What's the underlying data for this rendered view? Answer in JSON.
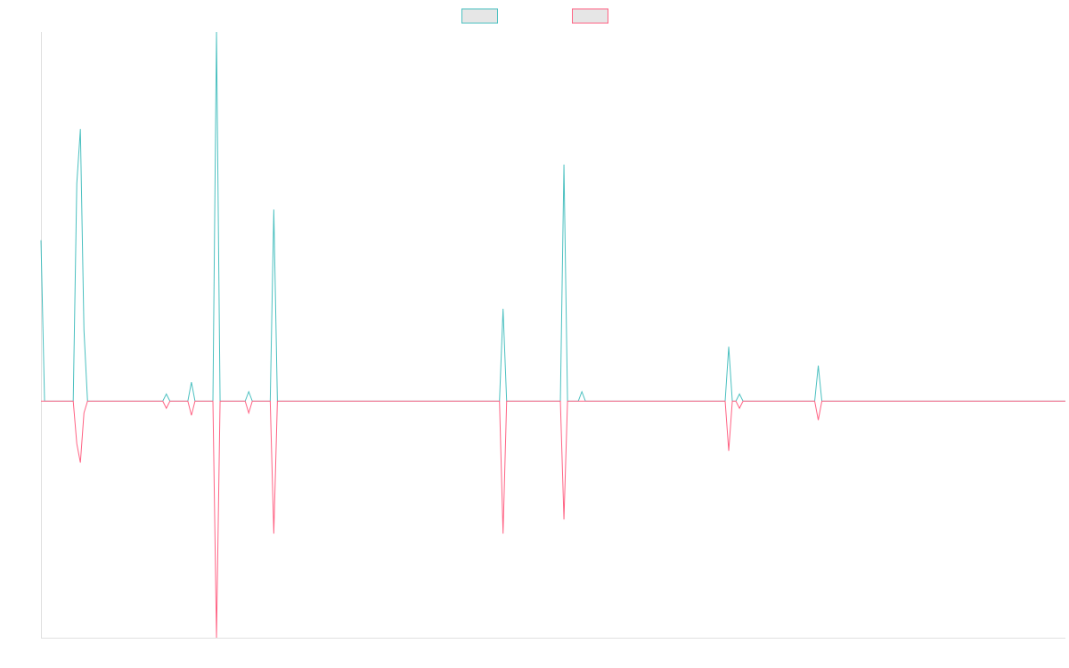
{
  "chart_data": {
    "type": "line",
    "title": "",
    "xlabel": "",
    "ylabel": "",
    "grid": false,
    "legend_position": "top-center",
    "x_range": [
      0,
      286
    ],
    "y_range": [
      -1.0,
      1.56
    ],
    "series": [
      {
        "color": "#4bc0c0",
        "legend_fill": "#e6e6e6",
        "points": [
          [
            0,
            0.68
          ],
          [
            1,
            0
          ],
          [
            9,
            0
          ],
          [
            10,
            0.92
          ],
          [
            11,
            1.15
          ],
          [
            12,
            0.3
          ],
          [
            13,
            0
          ],
          [
            34,
            0
          ],
          [
            35,
            0.03
          ],
          [
            36,
            0
          ],
          [
            41,
            0
          ],
          [
            42,
            0.08
          ],
          [
            43,
            0
          ],
          [
            48,
            0
          ],
          [
            49,
            1.56
          ],
          [
            50,
            0
          ],
          [
            57,
            0
          ],
          [
            58,
            0.04
          ],
          [
            59,
            0
          ],
          [
            64,
            0
          ],
          [
            65,
            0.81
          ],
          [
            66,
            0
          ],
          [
            128,
            0
          ],
          [
            129,
            0.39
          ],
          [
            130,
            0
          ],
          [
            145,
            0
          ],
          [
            146,
            1.0
          ],
          [
            147,
            0
          ],
          [
            150,
            0
          ],
          [
            151,
            0.04
          ],
          [
            152,
            0
          ],
          [
            191,
            0
          ],
          [
            192,
            0.23
          ],
          [
            193,
            0
          ],
          [
            194,
            0
          ],
          [
            195,
            0.03
          ],
          [
            196,
            0
          ],
          [
            216,
            0
          ],
          [
            217,
            0.15
          ],
          [
            218,
            0
          ],
          [
            286,
            0
          ]
        ]
      },
      {
        "color": "#ff6384",
        "legend_fill": "#e6e6e6",
        "points": [
          [
            0,
            0
          ],
          [
            9,
            0
          ],
          [
            10,
            -0.18
          ],
          [
            11,
            -0.26
          ],
          [
            12,
            -0.05
          ],
          [
            13,
            0
          ],
          [
            34,
            0
          ],
          [
            35,
            -0.03
          ],
          [
            36,
            0
          ],
          [
            41,
            0
          ],
          [
            42,
            -0.06
          ],
          [
            43,
            0
          ],
          [
            48,
            0
          ],
          [
            49,
            -1.0
          ],
          [
            50,
            0
          ],
          [
            57,
            0
          ],
          [
            58,
            -0.05
          ],
          [
            59,
            0
          ],
          [
            64,
            0
          ],
          [
            65,
            -0.56
          ],
          [
            66,
            0
          ],
          [
            128,
            0
          ],
          [
            129,
            -0.56
          ],
          [
            130,
            0
          ],
          [
            145,
            0
          ],
          [
            146,
            -0.5
          ],
          [
            147,
            0
          ],
          [
            191,
            0
          ],
          [
            192,
            -0.21
          ],
          [
            193,
            0
          ],
          [
            194,
            0
          ],
          [
            195,
            -0.03
          ],
          [
            196,
            0
          ],
          [
            216,
            0
          ],
          [
            217,
            -0.08
          ],
          [
            218,
            0
          ],
          [
            286,
            0
          ]
        ]
      }
    ]
  }
}
